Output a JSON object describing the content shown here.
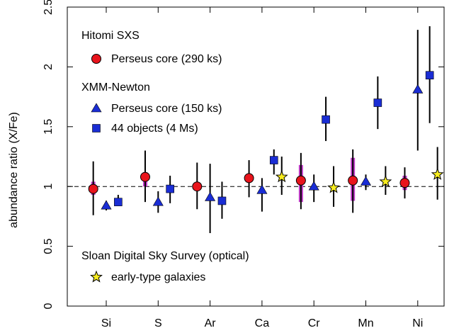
{
  "chart_data": {
    "type": "scatter",
    "ylabel": "abundance ratio (X/Fe)",
    "xlabel": "",
    "categories": [
      "Si",
      "S",
      "Ar",
      "Ca",
      "Cr",
      "Mn",
      "Ni"
    ],
    "ylim": [
      0,
      2.5
    ],
    "yticks": [
      "0",
      "0.5",
      "1",
      "1.5",
      "2",
      "2.5"
    ],
    "reference_line": 1.0,
    "legend": {
      "groups": [
        {
          "title": "Hitomi SXS",
          "entries": [
            {
              "marker": "circle",
              "label": "Perseus core (290 ks)"
            }
          ]
        },
        {
          "title": "XMM-Newton",
          "entries": [
            {
              "marker": "triangle",
              "label": "Perseus core (150 ks)"
            },
            {
              "marker": "square",
              "label": "44 objects (4 Ms)"
            }
          ]
        },
        {
          "title": "Sloan Digital Sky Survey (optical)",
          "entries": [
            {
              "marker": "star",
              "label": "early-type galaxies"
            }
          ]
        }
      ]
    },
    "series": [
      {
        "name": "Perseus core (290 ks)",
        "marker": "circle",
        "color": "#e8141c",
        "offset": -0.25,
        "values": [
          0.98,
          1.08,
          1.0,
          1.07,
          1.05,
          1.05,
          1.03
        ],
        "err_low": [
          0.76,
          0.87,
          0.81,
          0.91,
          0.81,
          0.78,
          0.9
        ],
        "err_high": [
          1.21,
          1.3,
          1.2,
          1.22,
          1.28,
          1.31,
          1.16
        ],
        "sys_low": [
          0.93,
          1.0,
          0.98,
          1.04,
          0.87,
          0.88,
          0.97
        ],
        "sys_high": [
          1.04,
          1.12,
          1.03,
          1.1,
          1.18,
          1.24,
          1.09
        ]
      },
      {
        "name": "Perseus core (150 ks)",
        "marker": "triangle",
        "color": "#1a2dd4",
        "offset": 0.0,
        "values": [
          0.84,
          0.87,
          0.91,
          0.97,
          1.0,
          1.04,
          1.81
        ],
        "err_low": [
          0.8,
          0.78,
          0.61,
          0.79,
          0.87,
          0.97,
          1.3
        ],
        "err_high": [
          0.88,
          0.96,
          1.19,
          1.07,
          1.1,
          1.1,
          2.31
        ]
      },
      {
        "name": "44 objects (4 Ms)",
        "marker": "square",
        "color": "#1a2dd4",
        "offset": 0.23,
        "values": [
          0.87,
          0.98,
          0.88,
          1.22,
          1.56,
          1.7,
          1.93
        ],
        "err_low": [
          0.85,
          0.86,
          0.73,
          1.1,
          1.38,
          1.48,
          1.53
        ],
        "err_high": [
          0.93,
          1.09,
          1.04,
          1.31,
          1.75,
          1.92,
          2.34
        ]
      },
      {
        "name": "early-type galaxies",
        "marker": "star",
        "color": "#f7ec1f",
        "offset": 0.38,
        "values": [
          null,
          null,
          null,
          1.08,
          0.99,
          1.04,
          1.1
        ],
        "err_low": [
          null,
          null,
          null,
          0.93,
          0.83,
          0.93,
          0.89
        ],
        "err_high": [
          null,
          null,
          null,
          1.25,
          1.17,
          1.17,
          1.33
        ]
      }
    ]
  }
}
